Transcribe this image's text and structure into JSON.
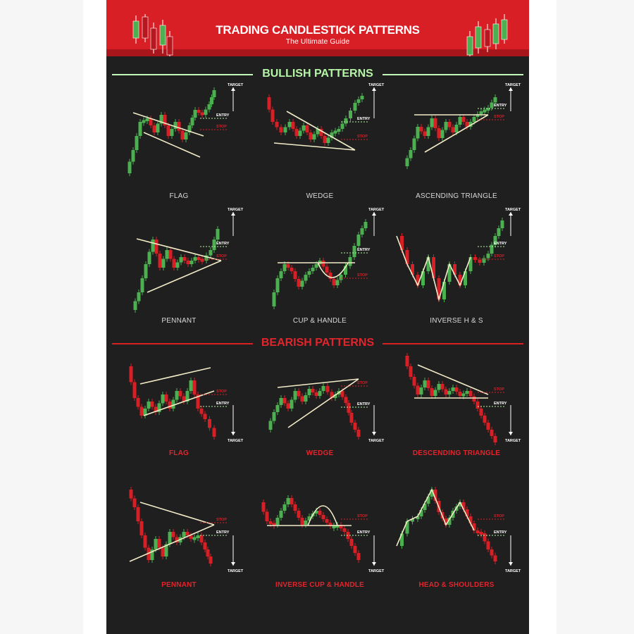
{
  "header": {
    "title": "TRADING CANDLESTICK PATTERNS",
    "subtitle": "The Ultimate Guide"
  },
  "bullish": {
    "heading": "BULLISH PATTERNS",
    "patterns": [
      {
        "name": "FLAG",
        "target": "TARGET",
        "entry": "ENTRY",
        "stop": "STOP"
      },
      {
        "name": "WEDGE",
        "target": "TARGET",
        "entry": "ENTRY",
        "stop": "STOP"
      },
      {
        "name": "ASCENDING TRIANGLE",
        "target": "TARGET",
        "entry": "ENTRY",
        "stop": "STOP"
      },
      {
        "name": "PENNANT",
        "target": "TARGET",
        "entry": "ENTRY",
        "stop": "STOP"
      },
      {
        "name": "CUP & HANDLE",
        "target": "TARGET",
        "entry": "ENTRY",
        "stop": "STOP"
      },
      {
        "name": "INVERSE H & S",
        "target": "TARGET",
        "entry": "ENTRY",
        "stop": "STOP"
      }
    ]
  },
  "bearish": {
    "heading": "BEARISH PATTERNS",
    "patterns": [
      {
        "name": "FLAG",
        "target": "TARGET",
        "entry": "ENTRY",
        "stop": "STOP"
      },
      {
        "name": "WEDGE",
        "target": "TARGET",
        "entry": "ENTRY",
        "stop": "STOP"
      },
      {
        "name": "DESCENDING TRIANGLE",
        "target": "TARGET",
        "entry": "ENTRY",
        "stop": "STOP"
      },
      {
        "name": "PENNANT",
        "target": "TARGET",
        "entry": "ENTRY",
        "stop": "STOP"
      },
      {
        "name": "INVERSE CUP & HANDLE",
        "target": "TARGET",
        "entry": "ENTRY",
        "stop": "STOP"
      },
      {
        "name": "HEAD & SHOULDERS",
        "target": "TARGET",
        "entry": "ENTRY",
        "stop": "STOP"
      }
    ]
  },
  "colors": {
    "background": "#1f1f1f",
    "header": "#d81f26",
    "bull_candle": "#4caf50",
    "bear_candle": "#d81f26",
    "trendline": "#f3ecc8",
    "bull_heading": "#b6f5a8",
    "bear_heading": "#e2252c"
  },
  "icons": [
    "candlestick-icon-left",
    "candlestick-icon-right",
    "target-arrow-icon"
  ]
}
